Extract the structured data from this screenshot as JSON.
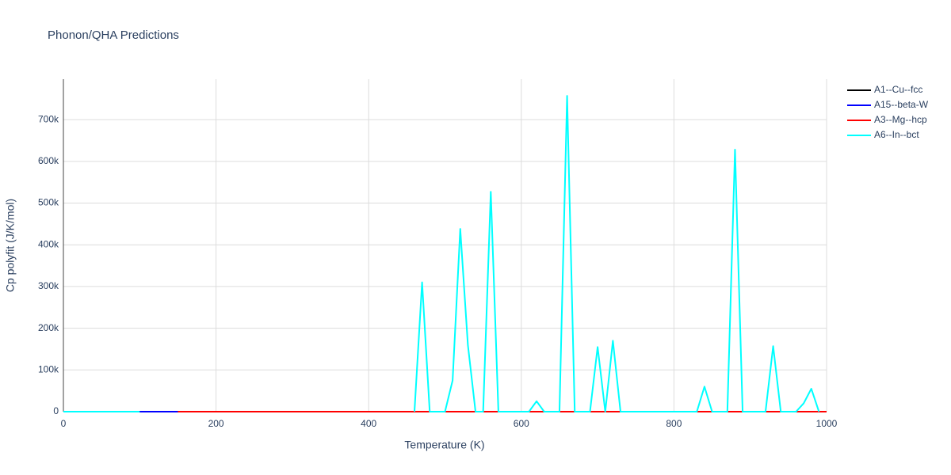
{
  "chart_data": {
    "type": "line",
    "title": "Phonon/QHA Predictions",
    "x_label": "Temperature (K)",
    "y_label": "Cp polyfit (J/K/mol)",
    "x": [
      0,
      10,
      20,
      30,
      40,
      50,
      60,
      70,
      80,
      90,
      100,
      110,
      120,
      130,
      140,
      150,
      160,
      170,
      180,
      190,
      200,
      210,
      220,
      230,
      240,
      250,
      260,
      270,
      280,
      290,
      300,
      310,
      320,
      330,
      340,
      350,
      360,
      370,
      380,
      390,
      400,
      410,
      420,
      430,
      440,
      450,
      460,
      470,
      480,
      490,
      500,
      510,
      520,
      530,
      540,
      550,
      560,
      570,
      580,
      590,
      600,
      610,
      620,
      630,
      640,
      650,
      660,
      670,
      680,
      690,
      700,
      710,
      720,
      730,
      740,
      750,
      760,
      770,
      780,
      790,
      800,
      810,
      820,
      830,
      840,
      850,
      860,
      870,
      880,
      890,
      900,
      910,
      920,
      930,
      940,
      950,
      960,
      970,
      980,
      990,
      1000
    ],
    "series": [
      {
        "name": "A1--Cu--fcc",
        "color": "#000000",
        "values": [
          0,
          0,
          0,
          0,
          0,
          0,
          0,
          0,
          0,
          0,
          0,
          0,
          0,
          0,
          0,
          0,
          0,
          0,
          0,
          0,
          0,
          0,
          0,
          0,
          0,
          0,
          0,
          0,
          0,
          0,
          0,
          0,
          0,
          0,
          0,
          0,
          0,
          0,
          0,
          0,
          0,
          0,
          0,
          0,
          0,
          0,
          0,
          0,
          0,
          0,
          0,
          0,
          0,
          0,
          0,
          0,
          0,
          0,
          0,
          0,
          0,
          0,
          0,
          0,
          0,
          0,
          0,
          0,
          0,
          0,
          0,
          0,
          0,
          0,
          0,
          0,
          0,
          0,
          0,
          0,
          0,
          0,
          0,
          0,
          0,
          0,
          0,
          0,
          0,
          0,
          0,
          0,
          0,
          0,
          0,
          0,
          0,
          0,
          0,
          0,
          0
        ]
      },
      {
        "name": "A15--beta-W",
        "color": "#0000ff",
        "values": [
          0,
          0,
          0,
          0,
          0,
          0,
          0,
          0,
          0,
          0,
          0,
          0,
          0,
          0,
          0,
          0,
          0,
          0,
          0,
          0,
          0,
          0,
          0,
          0,
          0,
          0,
          0,
          0,
          0,
          0,
          0,
          0,
          0,
          0,
          0,
          0,
          0,
          0,
          0,
          0,
          0,
          0,
          0,
          0,
          0,
          0,
          0,
          0,
          0,
          0,
          0,
          0,
          0,
          0,
          0,
          0,
          0,
          0,
          0,
          0,
          0,
          0,
          0,
          0,
          0,
          0,
          0,
          0,
          0,
          0,
          0,
          0,
          0,
          0,
          0,
          0,
          0,
          0,
          0,
          0,
          0,
          0,
          0,
          0,
          0,
          0,
          0,
          0,
          0,
          0,
          0,
          0,
          0,
          0,
          0,
          0,
          0,
          0,
          0,
          0,
          0
        ]
      },
      {
        "name": "A3--Mg--hcp",
        "color": "#ff0000",
        "values": [
          null,
          null,
          null,
          null,
          null,
          null,
          null,
          null,
          null,
          null,
          null,
          null,
          null,
          null,
          null,
          0,
          0,
          0,
          0,
          0,
          0,
          0,
          0,
          0,
          0,
          0,
          0,
          0,
          0,
          0,
          0,
          0,
          0,
          0,
          0,
          0,
          0,
          0,
          0,
          0,
          0,
          0,
          0,
          0,
          0,
          0,
          0,
          0,
          0,
          0,
          0,
          0,
          0,
          0,
          0,
          0,
          0,
          0,
          0,
          0,
          0,
          0,
          0,
          0,
          0,
          0,
          0,
          0,
          0,
          0,
          0,
          0,
          0,
          0,
          0,
          0,
          0,
          0,
          0,
          0,
          0,
          0,
          0,
          0,
          0,
          0,
          0,
          0,
          0,
          0,
          0,
          0,
          0,
          0,
          0,
          0,
          0,
          0,
          0,
          0,
          0
        ]
      },
      {
        "name": "A6--In--bct",
        "color": "#00ffff",
        "values": [
          0,
          0,
          0,
          0,
          0,
          0,
          0,
          0,
          0,
          0,
          0,
          null,
          null,
          null,
          null,
          null,
          null,
          null,
          null,
          null,
          null,
          null,
          null,
          null,
          null,
          null,
          null,
          null,
          null,
          null,
          null,
          null,
          null,
          null,
          null,
          null,
          null,
          null,
          null,
          null,
          null,
          null,
          null,
          null,
          null,
          null,
          0,
          310000,
          0,
          0,
          0,
          75000,
          438000,
          160000,
          0,
          0,
          527000,
          0,
          0,
          0,
          0,
          0,
          25000,
          0,
          0,
          0,
          757000,
          0,
          0,
          0,
          155000,
          0,
          170000,
          0,
          0,
          0,
          0,
          0,
          0,
          0,
          0,
          0,
          0,
          0,
          60000,
          0,
          0,
          0,
          628000,
          0,
          0,
          0,
          0,
          157000,
          0,
          0,
          0,
          20000,
          55000,
          0,
          null
        ]
      }
    ],
    "xlim": [
      0,
      1000
    ],
    "xticks": [
      0,
      200,
      400,
      600,
      800,
      1000
    ],
    "ylim": [
      0,
      797000
    ],
    "yticks": [
      0,
      {
        "value": 100000,
        "label": "100k"
      },
      {
        "value": 200000,
        "label": "200k"
      },
      {
        "value": 300000,
        "label": "300k"
      },
      {
        "value": 400000,
        "label": "400k"
      },
      {
        "value": 500000,
        "label": "500k"
      },
      {
        "value": 600000,
        "label": "600k"
      },
      {
        "value": 700000,
        "label": "700k"
      }
    ],
    "grid": true,
    "legend": "top-right"
  }
}
